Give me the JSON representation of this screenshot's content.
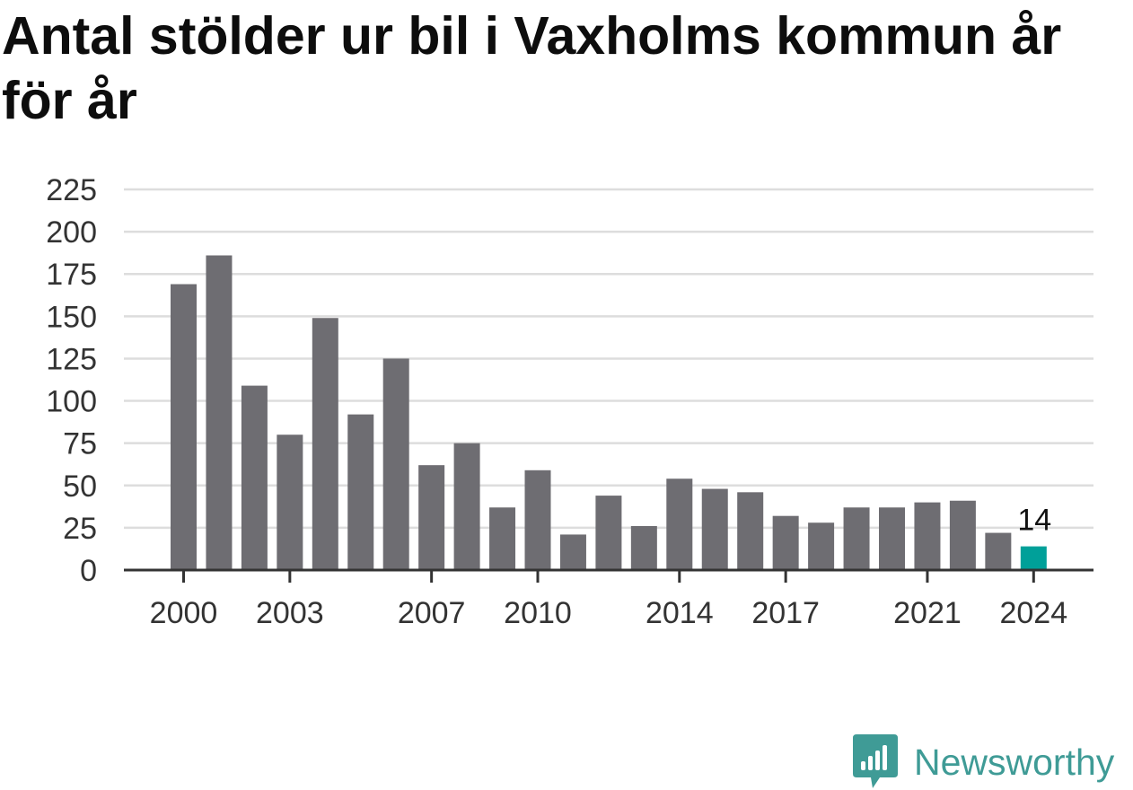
{
  "chart_data": {
    "type": "bar",
    "title": "Antal stölder ur bil i Vaxholms kommun år för år",
    "xlabel": "",
    "ylabel": "",
    "ylim": [
      0,
      225
    ],
    "yticks": [
      0,
      25,
      50,
      75,
      100,
      125,
      150,
      175,
      200,
      225
    ],
    "xtick_labels": [
      "2000",
      "2003",
      "2007",
      "2010",
      "2014",
      "2017",
      "2021",
      "2024"
    ],
    "categories": [
      "2000",
      "2001",
      "2002",
      "2003",
      "2004",
      "2005",
      "2006",
      "2007",
      "2008",
      "2009",
      "2010",
      "2011",
      "2012",
      "2013",
      "2014",
      "2015",
      "2016",
      "2017",
      "2018",
      "2019",
      "2020",
      "2021",
      "2022",
      "2023",
      "2024"
    ],
    "values": [
      169,
      186,
      109,
      80,
      149,
      92,
      125,
      62,
      75,
      37,
      59,
      21,
      44,
      26,
      54,
      48,
      46,
      32,
      28,
      37,
      37,
      40,
      41,
      22,
      14
    ],
    "highlight": {
      "category": "2024",
      "label": "14"
    },
    "grid": true,
    "colors": {
      "bar": "#6e6d72",
      "highlight": "#00a099",
      "grid": "#dddddd",
      "axis": "#333333",
      "tick_text": "#333333"
    }
  },
  "branding": {
    "logo_text": "Newsworthy",
    "logo_icon": "newsworthy-chart-bubble-icon",
    "color": "#3f9b96"
  }
}
